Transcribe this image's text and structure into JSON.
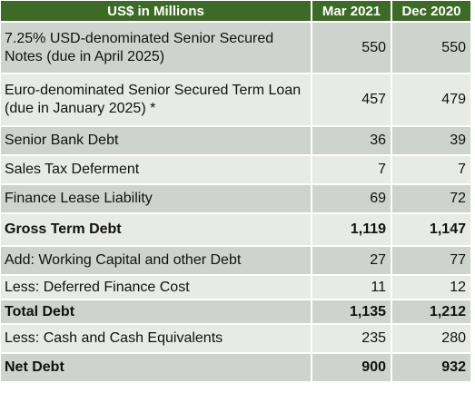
{
  "header": {
    "label": "US$ in Millions",
    "col1": "Mar 2021",
    "col2": "Dec 2020"
  },
  "rows": [
    {
      "label": "7.25% USD-denominated Senior Secured Notes (due in April 2025)",
      "mar2021": "550",
      "dec2020": "550"
    },
    {
      "label": "Euro-denominated Senior Secured Term Loan (due in January 2025) *",
      "mar2021": "457",
      "dec2020": "479"
    },
    {
      "label": "Senior Bank Debt",
      "mar2021": "36",
      "dec2020": "39"
    },
    {
      "label": "Sales Tax Deferment",
      "mar2021": "7",
      "dec2020": "7"
    },
    {
      "label": "Finance Lease Liability",
      "mar2021": "69",
      "dec2020": "72"
    },
    {
      "label": "Gross Term Debt",
      "mar2021": "1,119",
      "dec2020": "1,147"
    },
    {
      "label": "Add: Working Capital and other Debt",
      "mar2021": "27",
      "dec2020": "77"
    },
    {
      "label": "Less: Deferred Finance Cost",
      "mar2021": "11",
      "dec2020": "12"
    },
    {
      "label": "Total Debt",
      "mar2021": "1,135",
      "dec2020": "1,212"
    },
    {
      "label": "Less: Cash and Cash Equivalents",
      "mar2021": "235",
      "dec2020": "280"
    },
    {
      "label": "Net Debt",
      "mar2021": "900",
      "dec2020": "932"
    }
  ],
  "colors": {
    "header_bg": "#3d6b27",
    "row_dark": "#cfd3ce",
    "row_light": "#e8eae6"
  }
}
